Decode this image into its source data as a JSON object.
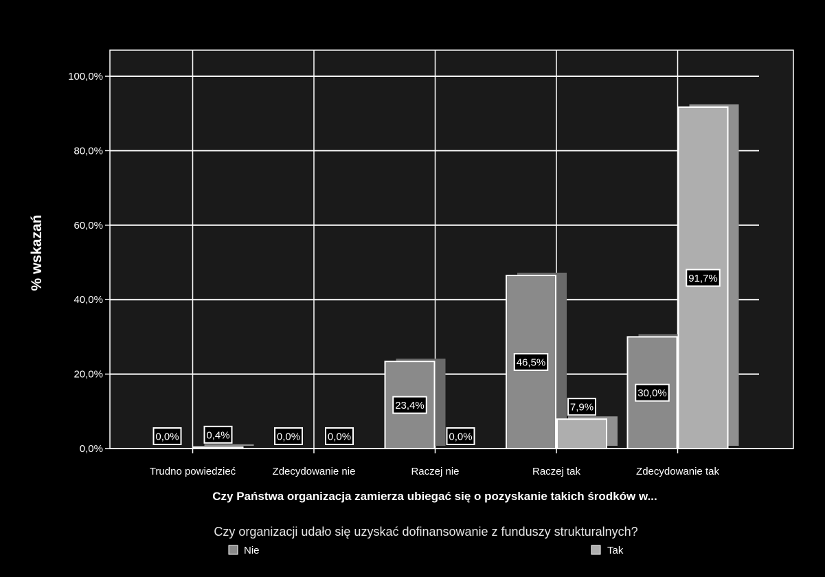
{
  "chart_data": {
    "type": "bar",
    "ylabel": "% wskazań",
    "xlabel": "Czy Państwa organizacja zamierza ubiegać się o pozyskanie takich środków w...",
    "categories": [
      "Trudno powiedzieć",
      "Zdecydowanie nie",
      "Raczej nie",
      "Raczej tak",
      "Zdecydowanie tak"
    ],
    "ylim": [
      0,
      100
    ],
    "yticks": [
      "0,0%",
      "20,0%",
      "40,0%",
      "60,0%",
      "80,0%",
      "100,0%"
    ],
    "grid": true,
    "legend": {
      "title": "Czy organizacji udało się uzyskać dofinansowanie z funduszy strukturalnych?",
      "placement": "bottom"
    },
    "series": [
      {
        "name": "Nie",
        "values": [
          0.0,
          0.0,
          23.4,
          46.5,
          30.0
        ],
        "labels": [
          "0,0%",
          "0,0%",
          "23,4%",
          "46,5%",
          "30,0%"
        ],
        "color": "#8a8a8a"
      },
      {
        "name": "Tak",
        "values": [
          0.4,
          0.0,
          0.0,
          7.9,
          91.7
        ],
        "labels": [
          "0,4%",
          "0,0%",
          "0,0%",
          "7,9%",
          "91,7%"
        ],
        "color": "#aeaeae"
      }
    ]
  }
}
